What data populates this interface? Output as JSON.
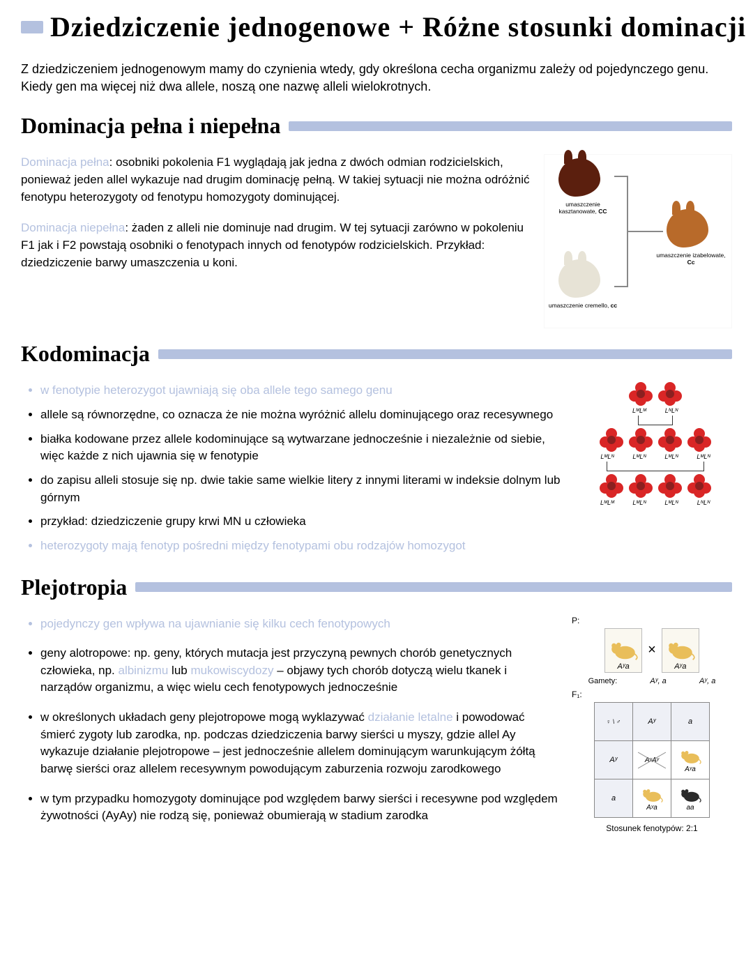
{
  "colors": {
    "accent_bar": "#b4c1df",
    "highlight_text": "#b4c1df",
    "text": "#000000",
    "background": "#ffffff",
    "horse_chestnut": "#5b1f0e",
    "horse_cremello": "#e7e3d6",
    "horse_palomino": "#b86a2a",
    "flower_red": "#d92626",
    "flower_center": "#7a1010",
    "mouse_yellow": "#e9be5a",
    "mouse_black": "#2b2b2b",
    "punnett_header_bg": "#eef0f6",
    "box_bg": "#faf8f0"
  },
  "typography": {
    "title_font": "Brush Script MT",
    "title_size_pt": 34,
    "heading_size_pt": 26,
    "body_font": "Comic Sans MS",
    "body_size_pt": 15,
    "caption_size_pt": 8
  },
  "title": "Dziedziczenie jednogenowe + Różne stosunki dominacji",
  "intro": "Z dziedziczeniem jednogenowym mamy do czynienia wtedy, gdy określona cecha organizmu zależy od pojedynczego genu. Kiedy gen ma więcej niż dwa allele, noszą one nazwę alleli wielokrotnych.",
  "sections": {
    "dominacja": {
      "heading": "Dominacja pełna i niepełna",
      "p1_hl": "Dominacja pełna",
      "p1": ": osobniki pokolenia F1 wyglądają jak jedna z dwóch odmian rodzicielskich, ponieważ jeden allel wykazuje nad drugim dominację pełną. W takiej sytuacji nie można odróżnić fenotypu heterozygoty od fenotypu homozygoty dominującej.",
      "p2_hl": "Dominacja niepełna",
      "p2": ": żaden z alleli nie dominuje nad drugim. W tej sytuacji zarówno w pokoleniu F1 jak i F2 powstają osobniki o fenotypach innych od fenotypów rodzicielskich. Przykład: dziedziczenie barwy umaszczenia u koni.",
      "fig": {
        "horses": [
          {
            "label": "umaszczenie kasztanowate,",
            "genotype": "CC",
            "color": "#5b1f0e",
            "pos": "top-left"
          },
          {
            "label": "umaszczenie cremello,",
            "genotype": "cc",
            "color": "#e7e3d6",
            "pos": "bottom-left"
          },
          {
            "label": "umaszczenie izabelowate,",
            "genotype": "Cc",
            "color": "#b86a2a",
            "pos": "right"
          }
        ]
      }
    },
    "kodominacja": {
      "heading": "Kodominacja",
      "items": [
        {
          "hl": true,
          "text": "w fenotypie heterozygot ujawniają się oba allele tego samego genu"
        },
        {
          "hl": false,
          "text": "allele są równorzędne, co oznacza że nie można wyróżnić allelu dominującego oraz recesywnego"
        },
        {
          "hl": false,
          "text": "białka kodowane przez allele kodominujące są wytwarzane jednocześnie i niezależnie od siebie, więc każde z nich ujawnia się w fenotypie"
        },
        {
          "hl": false,
          "text": "do zapisu alleli stosuje się np. dwie takie same wielkie litery z innymi literami w indeksie dolnym lub górnym"
        },
        {
          "hl": false,
          "text": "przykład: dziedziczenie grupy krwi MN u człowieka"
        },
        {
          "hl": true,
          "text": "heterozygoty mają fenotyp pośredni między fenotypami obu rodzajów homozygot"
        }
      ],
      "fig": {
        "parentLabels": [
          "LᴹLᴹ",
          "LᴺLᴺ"
        ],
        "f1Labels": [
          "LᴹLᴺ",
          "LᴹLᴺ",
          "LᴹLᴺ",
          "LᴹLᴺ"
        ],
        "f2Labels": [
          "LᴹLᴹ",
          "LᴹLᴺ",
          "LᴹLᴺ",
          "LᴺLᴺ"
        ]
      }
    },
    "plejotropia": {
      "heading": "Plejotropia",
      "items": [
        {
          "hl": true,
          "text": "pojedynczy gen wpływa na ujawnianie się kilku cech fenotypowych"
        },
        {
          "hl": false,
          "prefix": "geny alotropowe: np. geny, których mutacja jest przyczyną pewnych chorób genetycznych człowieka, np. ",
          "hl1": "albinizmu",
          "mid": " lub ",
          "hl2": "mukowiscydozy",
          "suffix": " – objawy tych chorób dotyczą wielu tkanek i narządów organizmu, a więc wielu cech fenotypowych jednocześnie"
        },
        {
          "hl": false,
          "prefix": "w określonych układach geny plejotropowe mogą wyklazywać ",
          "hl1": "działanie letalne",
          "suffix": " i powodować śmierć zygoty lub zarodka, np. podczas dziedziczenia barwy sierści u myszy, gdzie allel Ay wykazuje działanie plejotropowe – jest jednocześnie allelem dominującym warunkującym żółtą barwę sierści oraz allelem recesywnym powodującym zaburzenia rozwoju zarodkowego"
        },
        {
          "hl": false,
          "text": "w tym przypadku homozygoty dominujące pod względem barwy sierści i recesywne pod względem żywotności (AyAy) nie rodzą się, ponieważ obumierają w stadium zarodka"
        }
      ],
      "fig": {
        "P_label": "P:",
        "gametes_label": "Gamety:",
        "F1_label": "F₁:",
        "parents": [
          {
            "genotype": "Aʸa",
            "color": "#e9be5a"
          },
          {
            "genotype": "Aʸa",
            "color": "#e9be5a"
          }
        ],
        "gametes": [
          "Aʸ, a",
          "Aʸ, a"
        ],
        "punnett": {
          "headers_col": [
            "Aʸ",
            "a"
          ],
          "headers_row": [
            "Aʸ",
            "a"
          ],
          "cells": [
            [
              {
                "genotype": "AʸAʸ",
                "dead": true
              },
              {
                "genotype": "Aʸa",
                "color": "#e9be5a"
              }
            ],
            [
              {
                "genotype": "Aʸa",
                "color": "#e9be5a"
              },
              {
                "genotype": "aa",
                "color": "#2b2b2b"
              }
            ]
          ],
          "corner_symbols": "♀ \\ ♂"
        },
        "ratio": "Stosunek fenotypów: 2:1"
      }
    }
  }
}
